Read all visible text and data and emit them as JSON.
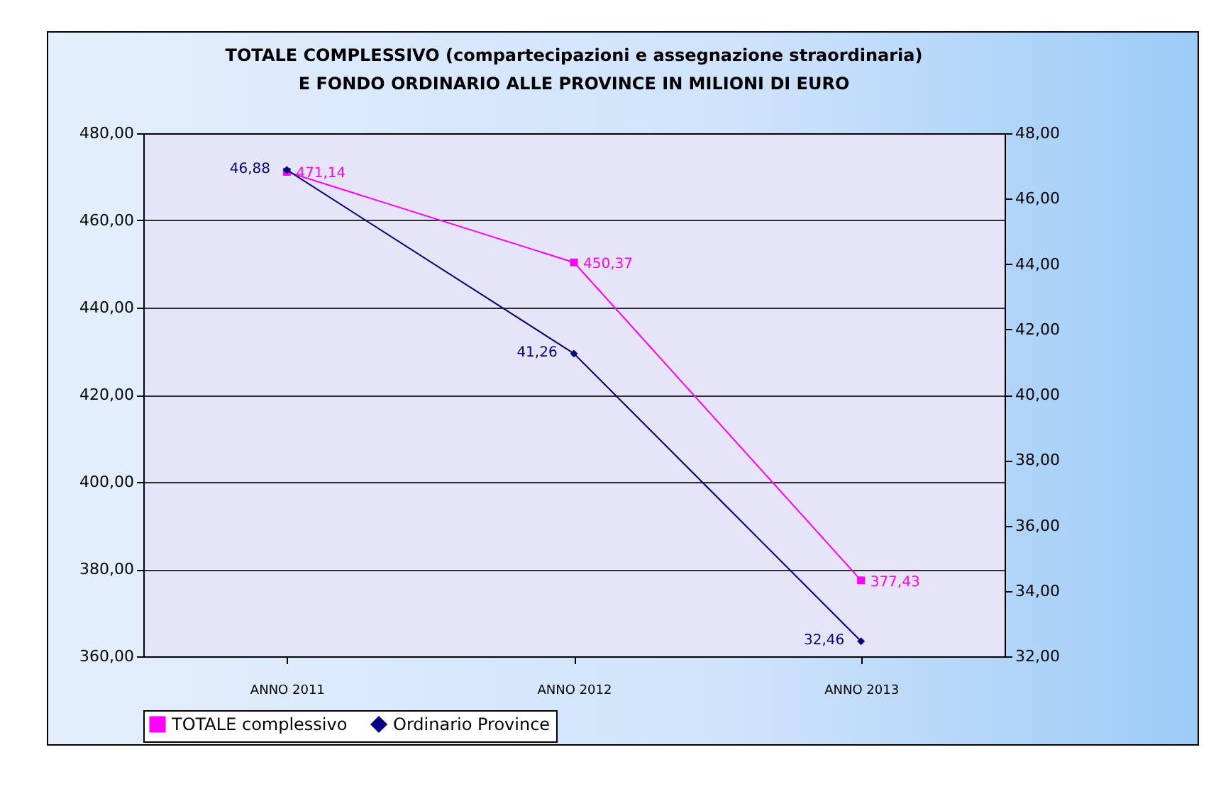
{
  "chart_data": {
    "type": "line",
    "title": [
      "TOTALE COMPLESSIVO (compartecipazioni e assegnazione straordinaria)",
      "E FONDO ORDINARIO ALLE PROVINCE IN MILIONI DI EURO"
    ],
    "categories": [
      "ANNO 2011",
      "ANNO 2012",
      "ANNO 2013"
    ],
    "series": [
      {
        "name": "TOTALE  complessivo",
        "color": "#ff00ff",
        "marker": "square",
        "values": [
          471.14,
          450.37,
          377.43
        ],
        "value_labels": [
          "471,14",
          "450,37",
          "377,43"
        ]
      },
      {
        "name": "Ordinario Province",
        "color": "#000080",
        "marker": "diamond",
        "axis": "y2",
        "values": [
          46.88,
          41.26,
          32.46
        ],
        "value_labels": [
          "46,88",
          "41,26",
          "32,46"
        ]
      }
    ],
    "ylim": [
      360,
      480
    ],
    "yticks": [
      {
        "value": 360,
        "label": "360,00"
      },
      {
        "value": 380,
        "label": "380,00"
      },
      {
        "value": 400,
        "label": "400,00"
      },
      {
        "value": 420,
        "label": "420,00"
      },
      {
        "value": 440,
        "label": "440,00"
      },
      {
        "value": 460,
        "label": "460,00"
      },
      {
        "value": 480,
        "label": "480,00"
      }
    ],
    "y2lim": [
      32,
      48
    ],
    "y2ticks": [
      {
        "value": 32,
        "label": "32,00"
      },
      {
        "value": 34,
        "label": "34,00"
      },
      {
        "value": 36,
        "label": "36,00"
      },
      {
        "value": 38,
        "label": "38,00"
      },
      {
        "value": 40,
        "label": "40,00"
      },
      {
        "value": 42,
        "label": "42,00"
      },
      {
        "value": 44,
        "label": "44,00"
      },
      {
        "value": 46,
        "label": "46,00"
      },
      {
        "value": 48,
        "label": "48,00"
      }
    ],
    "grid": "y",
    "legend": "bottom",
    "line_style": "solid"
  }
}
